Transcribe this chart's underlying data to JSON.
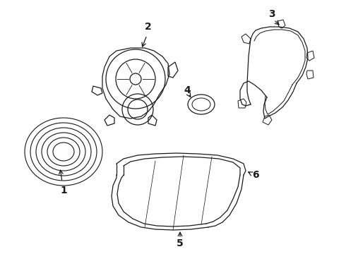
{
  "background_color": "#ffffff",
  "line_color": "#1a1a1a",
  "lw": 0.9,
  "fig_width": 4.9,
  "fig_height": 3.6,
  "dpi": 100
}
